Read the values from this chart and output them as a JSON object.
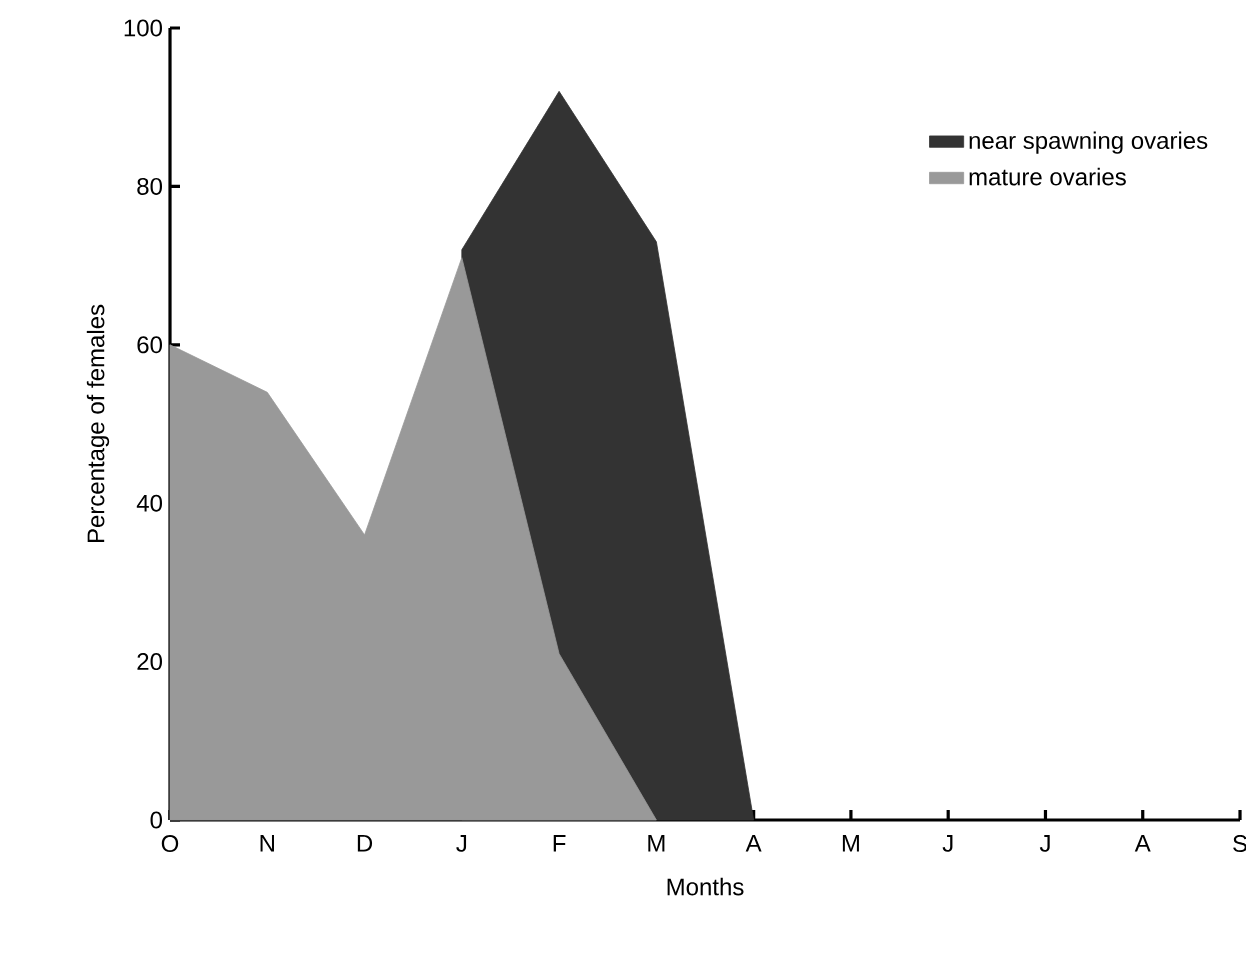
{
  "chart_data": {
    "type": "area",
    "xlabel": "Months",
    "ylabel": "Percentage of females",
    "categories": [
      "O",
      "N",
      "D",
      "J",
      "F",
      "M",
      "A",
      "M",
      "J",
      "J",
      "A",
      "S"
    ],
    "series": [
      {
        "name": "near spawning ovaries",
        "color": "#333333",
        "values": [
          null,
          null,
          null,
          72,
          92,
          73,
          0,
          null,
          null,
          null,
          null,
          null
        ]
      },
      {
        "name": "mature ovaries",
        "color": "#999999",
        "values": [
          60,
          54,
          36,
          71,
          21,
          0,
          null,
          null,
          null,
          null,
          null,
          null
        ]
      }
    ],
    "ylim": [
      0,
      100
    ],
    "yticks": [
      0,
      20,
      40,
      60,
      80,
      100
    ],
    "legend": "top right"
  }
}
